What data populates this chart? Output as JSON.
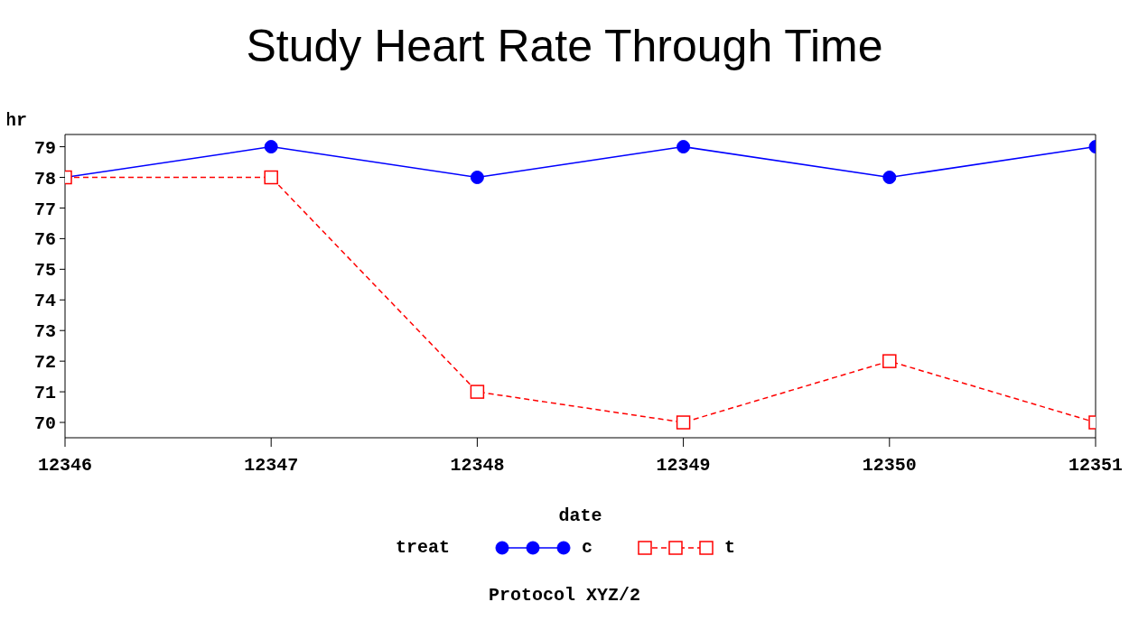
{
  "chart_data": {
    "type": "line",
    "title": "Study Heart Rate Through Time",
    "xlabel": "date",
    "ylabel": "hr",
    "legend_title": "treat",
    "legend": "bottom",
    "grid": false,
    "x": [
      12346,
      12347,
      12348,
      12349,
      12350,
      12351
    ],
    "xlim": [
      12346,
      12351
    ],
    "xticks": [
      12346,
      12347,
      12348,
      12349,
      12350,
      12351
    ],
    "ylim": [
      69.5,
      79.4
    ],
    "yticks": [
      70,
      71,
      72,
      73,
      74,
      75,
      76,
      77,
      78,
      79
    ],
    "series": [
      {
        "name": "c",
        "color": "#0000ff",
        "values": [
          78,
          79,
          78,
          79,
          78,
          79
        ],
        "marker": "circle",
        "line_style": "solid"
      },
      {
        "name": "t",
        "color": "#ff0000",
        "values": [
          78,
          78,
          71,
          70,
          72,
          70
        ],
        "marker": "square",
        "line_style": "dashed"
      }
    ],
    "annotations": [
      "Protocol XYZ/2"
    ]
  }
}
